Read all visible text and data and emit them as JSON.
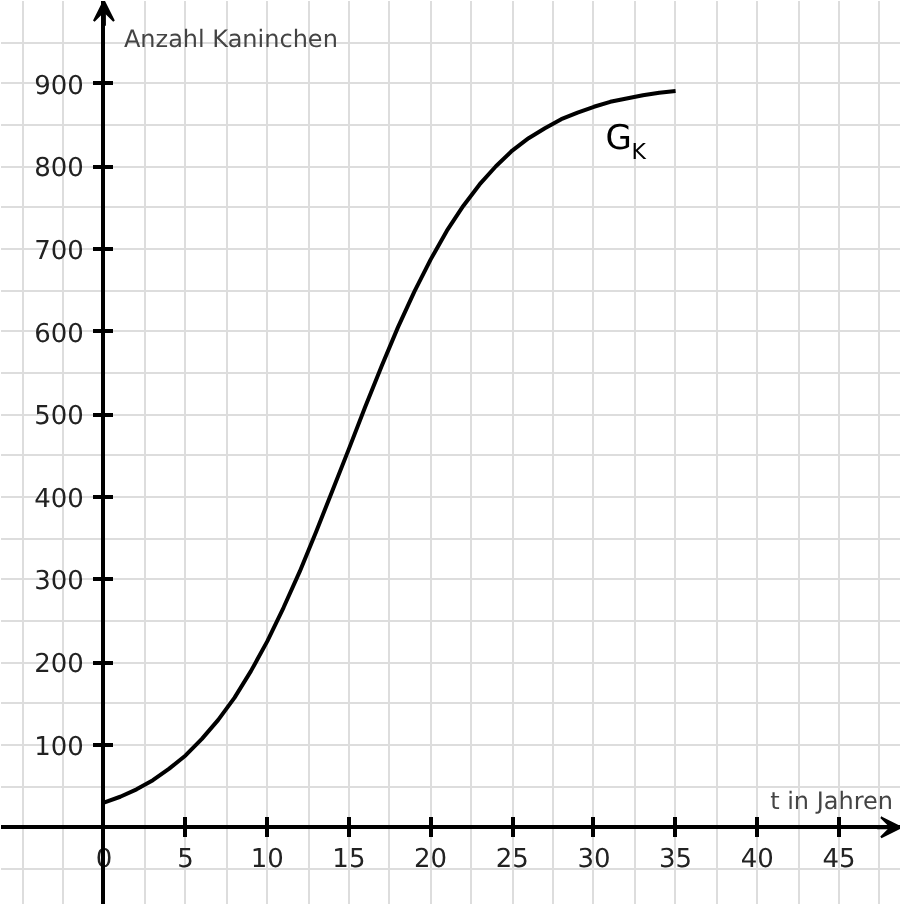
{
  "chart_data": {
    "type": "line",
    "xlabel": "t in Jahren",
    "ylabel": "Anzahl Kaninchen",
    "xlim": [
      -6.3,
      48.8
    ],
    "ylim": [
      -94,
      1000
    ],
    "xticks": [
      0,
      5,
      10,
      15,
      20,
      25,
      30,
      35,
      40,
      45
    ],
    "yticks": [
      100,
      200,
      300,
      400,
      500,
      600,
      700,
      800,
      900
    ],
    "grid": true,
    "marker": "none",
    "line_style": "solid",
    "x": [
      0,
      1,
      2,
      3,
      4,
      5,
      6,
      7,
      8,
      9,
      10,
      11,
      12,
      13,
      14,
      15,
      16,
      17,
      18,
      19,
      20,
      21,
      22,
      23,
      24,
      25,
      26,
      27,
      28,
      29,
      30,
      31,
      32,
      33,
      34,
      35
    ],
    "series": [
      {
        "name": "G$_{K}$",
        "color": "#000000",
        "values": [
          30,
          37,
          46,
          57,
          71,
          87,
          107,
          130,
          157,
          189,
          225,
          266,
          310,
          358,
          408,
          458,
          509,
          558,
          605,
          648,
          687,
          722,
          752,
          778,
          800,
          819,
          834,
          846,
          857,
          865,
          872,
          878,
          882,
          886,
          889,
          891
        ]
      }
    ]
  }
}
